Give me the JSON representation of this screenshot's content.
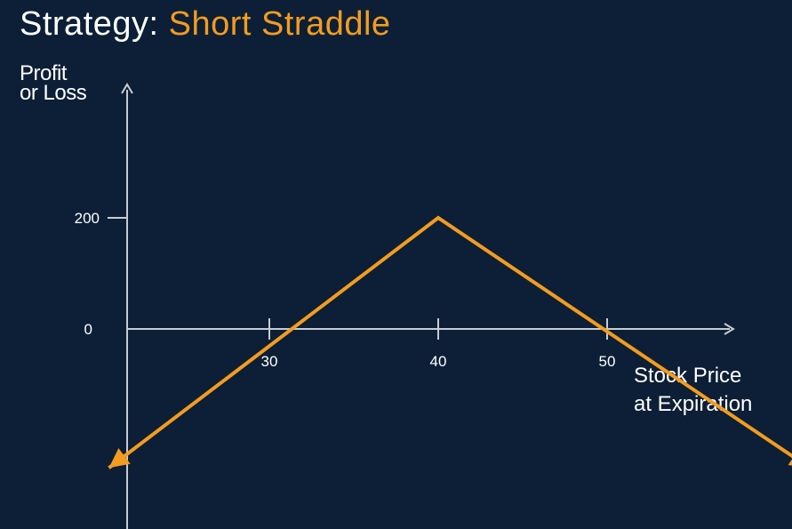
{
  "title": {
    "prefix": "Strategy:",
    "name": "Short Straddle"
  },
  "colors": {
    "background": "#0c1f36",
    "axis": "#c8ccd2",
    "line": "#f39c1f",
    "title_accent": "#f39c1f",
    "text": "#ffffff"
  },
  "chart_data": {
    "type": "line",
    "title": "Strategy: Short Straddle",
    "xlabel": "Stock Price at Expiration",
    "ylabel": "Profit or Loss",
    "ylabel_lines": [
      "Profit",
      "or Loss"
    ],
    "xlabel_lines": [
      "Stock Price",
      "at Expiration"
    ],
    "x_ticks": [
      30,
      40,
      50
    ],
    "y_ticks": [
      200,
      0
    ],
    "xlim": [
      21.5,
      57
    ],
    "ylim": [
      -360,
      270
    ],
    "grid": false,
    "legend": "none",
    "series": [
      {
        "points": [
          [
            20.5,
            -250
          ],
          [
            40,
            200
          ],
          [
            62,
            -250
          ]
        ]
      }
    ]
  }
}
